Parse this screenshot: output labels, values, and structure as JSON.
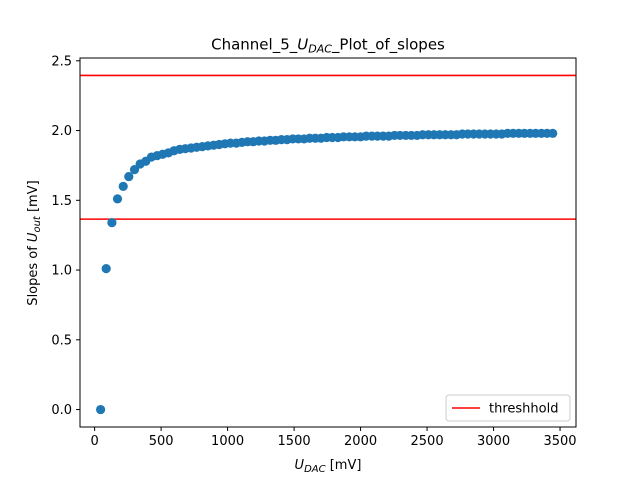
{
  "chart_data": {
    "type": "scatter",
    "title": {
      "pre": "Channel_5_",
      "var": "U",
      "sub": "DAC",
      "post": "_Plot_of_slopes"
    },
    "xlabel": {
      "var": "U",
      "sub": "DAC",
      "post": " [mV]"
    },
    "ylabel": {
      "pre": "Slopes of ",
      "var": "U",
      "sub": "out",
      "post": " [mV]"
    },
    "xlim": [
      -110,
      3620
    ],
    "ylim": [
      -0.125,
      2.52
    ],
    "xticks": [
      0,
      500,
      1000,
      1500,
      2000,
      2500,
      3000,
      3500
    ],
    "xtick_labels": [
      "0",
      "500",
      "1000",
      "1500",
      "2000",
      "2500",
      "3000",
      "3500"
    ],
    "yticks": [
      0.0,
      0.5,
      1.0,
      1.5,
      2.0,
      2.5
    ],
    "ytick_labels": [
      "0.0",
      "0.5",
      "1.0",
      "1.5",
      "2.0",
      "2.5"
    ],
    "grid": false,
    "series": [
      {
        "color": "#1f77b4",
        "marker": "circle",
        "x": [],
        "y": []
      }
    ],
    "scatter_model": {
      "x_start": 45,
      "x_step": 42.5,
      "count": 81,
      "y_max": 1.985,
      "anchors_x": [
        45,
        87,
        130,
        172,
        215,
        257,
        300,
        342,
        385,
        427,
        470,
        512,
        555,
        597,
        640,
        682,
        725,
        767,
        810,
        852,
        895,
        937,
        980,
        1022,
        1065,
        1107,
        1150,
        1192,
        1235,
        1277,
        1320,
        1362,
        1405,
        1447,
        1490,
        1532,
        1575,
        1617,
        1660,
        1702,
        1745,
        1787,
        1830,
        1872,
        1915,
        1957,
        2000,
        2042,
        2085,
        2127,
        2170,
        2212,
        2255,
        2297,
        2340,
        2382,
        2425,
        2467,
        2510,
        2552,
        2595,
        2637,
        2680,
        2722,
        2765,
        2807,
        2850,
        2892,
        2935,
        2977,
        3020,
        3062,
        3105,
        3147,
        3190,
        3232,
        3275,
        3317,
        3360,
        3402,
        3445
      ],
      "anchors_y": [
        0.0,
        1.01,
        1.34,
        1.51,
        1.6,
        1.67,
        1.72,
        1.76,
        1.78,
        1.81,
        1.82,
        1.83,
        1.84,
        1.855,
        1.865,
        1.87,
        1.875,
        1.88,
        1.885,
        1.89,
        1.895,
        1.9,
        1.905,
        1.91,
        1.91,
        1.915,
        1.92,
        1.92,
        1.925,
        1.925,
        1.93,
        1.93,
        1.935,
        1.935,
        1.94,
        1.94,
        1.94,
        1.945,
        1.945,
        1.945,
        1.95,
        1.95,
        1.95,
        1.955,
        1.955,
        1.955,
        1.955,
        1.96,
        1.96,
        1.96,
        1.96,
        1.96,
        1.965,
        1.965,
        1.965,
        1.965,
        1.965,
        1.97,
        1.97,
        1.97,
        1.97,
        1.97,
        1.97,
        1.97,
        1.975,
        1.975,
        1.975,
        1.975,
        1.975,
        1.975,
        1.975,
        1.975,
        1.98,
        1.98,
        1.98,
        1.98,
        1.98,
        1.98,
        1.98,
        1.98,
        1.98
      ]
    },
    "hlines": [
      {
        "y": 2.395,
        "color": "#ff0000",
        "label": "threshhold"
      },
      {
        "y": 1.365,
        "color": "#ff0000",
        "label": "threshhold"
      }
    ],
    "legend": {
      "placement": "lower-right",
      "entries": [
        {
          "label": "threshhold",
          "color": "#ff0000"
        }
      ]
    }
  }
}
